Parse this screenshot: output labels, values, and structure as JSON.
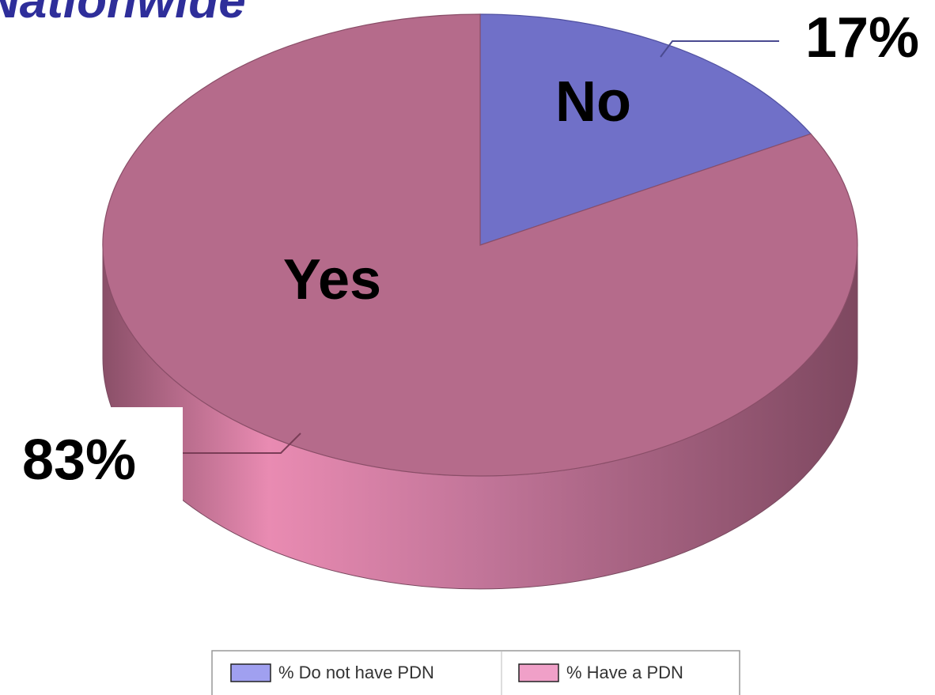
{
  "chart_data": {
    "type": "pie",
    "title": "Nationwide",
    "categories": [
      "% Do not have PDN",
      "% Have a PDN"
    ],
    "values": [
      17,
      83
    ],
    "value_labels": [
      "17%",
      "83%"
    ],
    "slice_labels": [
      "No",
      "Yes"
    ],
    "colors": [
      "#7070c8",
      "#b56b8b"
    ],
    "legend": "bottom"
  }
}
